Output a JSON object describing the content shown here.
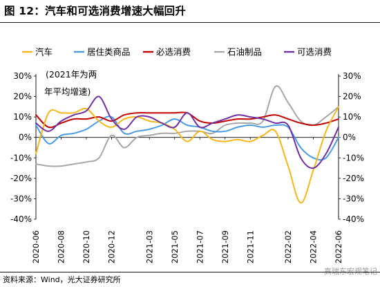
{
  "figure": {
    "title": "图 12：汽车和可选消费增速大幅回升",
    "source": "资料来源：Wind，光大证券研究所",
    "watermark": "高瑞东宏观笔记"
  },
  "chart_data": {
    "type": "line",
    "annotation": "(2021年为两年平均增速)",
    "x": [
      "2020-06",
      "2020-07",
      "2020-08",
      "2020-09",
      "2020-10",
      "2020-11",
      "2020-12",
      "2021-01",
      "2021-02",
      "2021-03",
      "2021-04",
      "2021-05",
      "2021-06",
      "2021-07",
      "2021-08",
      "2021-09",
      "2021-10",
      "2021-11",
      "2021-12",
      "2022-01",
      "2022-02",
      "2022-03",
      "2022-04",
      "2022-05",
      "2022-06"
    ],
    "xticks": [
      "2020-06",
      "2020-08",
      "2020-10",
      "2020-12",
      "2021-03",
      "2021-05",
      "2021-07",
      "2021-09",
      "2021-11",
      "2022-02",
      "2022-04",
      "2022-06"
    ],
    "yticks": [
      "-40%",
      "-30%",
      "-20%",
      "-10%",
      "0%",
      "10%",
      "20%",
      "30%"
    ],
    "ylim": [
      -40,
      30
    ],
    "legend_position": "top",
    "grid": false,
    "series": [
      {
        "name": "汽车",
        "color": "#f4b71b",
        "values": [
          -8,
          12,
          12,
          12,
          14,
          8,
          5,
          9,
          10,
          8,
          7,
          4,
          -2,
          3,
          -1,
          -2,
          -1,
          -2,
          1,
          3,
          -14,
          -32,
          -16,
          3,
          15
        ]
      },
      {
        "name": "居住类商品",
        "color": "#4a9be0",
        "values": [
          6,
          -3,
          1,
          2,
          4,
          8,
          10,
          2,
          3,
          4,
          6,
          9,
          6,
          5,
          3,
          3,
          5,
          6,
          5,
          6,
          5,
          -5,
          -10,
          -10,
          0
        ]
      },
      {
        "name": "必选消费",
        "color": "#c00000",
        "values": [
          11,
          5,
          7,
          9,
          9,
          10,
          8,
          11,
          12,
          12,
          12,
          12,
          12,
          8,
          7,
          8,
          9,
          9,
          10,
          11,
          9,
          7,
          6,
          7,
          9
        ]
      },
      {
        "name": "石油制品",
        "color": "#a6a6a6",
        "values": [
          -13,
          -14,
          -14,
          -13,
          -12,
          -10,
          1,
          -5,
          0,
          1,
          2,
          2,
          3,
          3,
          2,
          6,
          7,
          7,
          8,
          25,
          17,
          8,
          6,
          10,
          15
        ]
      },
      {
        "name": "可选消费",
        "color": "#7030a0",
        "values": [
          7,
          3,
          8,
          11,
          13,
          20,
          9,
          4,
          10,
          10,
          7,
          5,
          12,
          5,
          7,
          9,
          11,
          10,
          9,
          7,
          6,
          -10,
          -15,
          -8,
          5
        ]
      }
    ]
  }
}
